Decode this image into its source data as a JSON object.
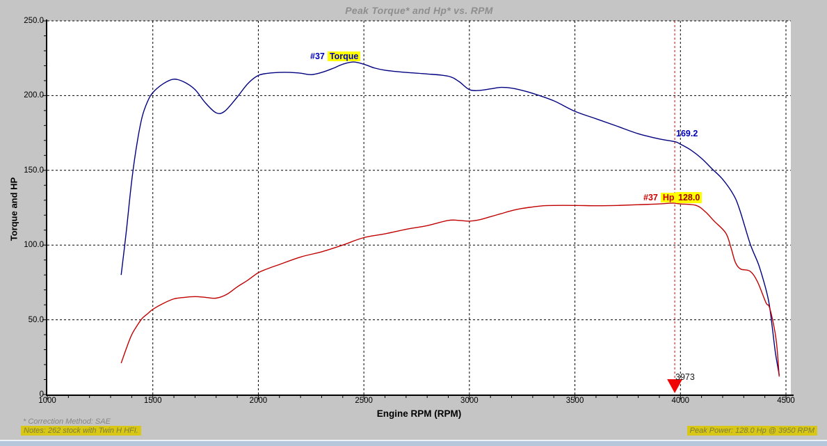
{
  "title": "Peak Torque* and Hp* vs. RPM",
  "axes": {
    "x_label": "Engine RPM (RPM)",
    "y_label": "Torque and HP",
    "x_ticks": [
      "1000",
      "1500",
      "2000",
      "2500",
      "3000",
      "3500",
      "4000",
      "4500"
    ],
    "y_ticks": [
      "0",
      "50.0",
      "100.0",
      "150.0",
      "200.0",
      "250.0"
    ]
  },
  "annotations": {
    "torque_label_prefix": "#37",
    "torque_label_name": "Torque",
    "hp_label_prefix": "#37",
    "hp_label_name": "Hp",
    "torque_value_at_cursor": "169.2",
    "hp_value_at_cursor": "128.0",
    "cursor_rpm": "3973"
  },
  "footer": {
    "correction_method": "* Correction Method: SAE",
    "notes": "Notes: 262 stock with Twin H HFI.",
    "peak_power": "Peak Power: 128.0 Hp @ 3950 RPM"
  },
  "colors": {
    "torque": "#000080",
    "hp": "#c00000",
    "cursor": "#d40000",
    "marker": "#f00505",
    "highlight": "#ffff00",
    "footer_highlight": "#d8c716",
    "title_gray": "#8e8e8e"
  },
  "chart_data": {
    "type": "line",
    "title": "Peak Torque* and Hp* vs. RPM",
    "xlabel": "Engine RPM (RPM)",
    "ylabel": "Torque and HP",
    "xlim": [
      1000,
      4500
    ],
    "ylim": [
      0,
      250
    ],
    "x_major_ticks": [
      1000,
      1500,
      2000,
      2500,
      3000,
      3500,
      4000,
      4500
    ],
    "y_major_ticks": [
      0,
      50,
      100,
      150,
      200,
      250
    ],
    "x_minor_step": 100,
    "y_minor_step": 10,
    "grid": "dashed",
    "legend_position": "inline-labels",
    "series": [
      {
        "id": "torque",
        "name": "#37 Torque",
        "color": "#000080",
        "points": [
          [
            1350,
            80
          ],
          [
            1375,
            110
          ],
          [
            1400,
            143
          ],
          [
            1425,
            168
          ],
          [
            1450,
            186
          ],
          [
            1475,
            196
          ],
          [
            1500,
            202
          ],
          [
            1550,
            208
          ],
          [
            1600,
            211
          ],
          [
            1650,
            209
          ],
          [
            1700,
            204
          ],
          [
            1750,
            195
          ],
          [
            1800,
            188.5
          ],
          [
            1840,
            189.5
          ],
          [
            1900,
            199
          ],
          [
            1950,
            208
          ],
          [
            2000,
            213.5
          ],
          [
            2050,
            215
          ],
          [
            2100,
            215.5
          ],
          [
            2150,
            215.5
          ],
          [
            2200,
            215
          ],
          [
            2250,
            214
          ],
          [
            2300,
            215.5
          ],
          [
            2350,
            218
          ],
          [
            2400,
            221
          ],
          [
            2450,
            222.5
          ],
          [
            2500,
            221
          ],
          [
            2550,
            218.5
          ],
          [
            2600,
            217
          ],
          [
            2700,
            215.5
          ],
          [
            2800,
            214.5
          ],
          [
            2900,
            213
          ],
          [
            2950,
            209.5
          ],
          [
            3000,
            204
          ],
          [
            3050,
            203.5
          ],
          [
            3100,
            204.5
          ],
          [
            3150,
            205.5
          ],
          [
            3200,
            205
          ],
          [
            3250,
            203.5
          ],
          [
            3300,
            201.5
          ],
          [
            3400,
            196.5
          ],
          [
            3500,
            189.5
          ],
          [
            3600,
            184.5
          ],
          [
            3700,
            179.5
          ],
          [
            3800,
            174.5
          ],
          [
            3900,
            171
          ],
          [
            3973,
            169.2
          ],
          [
            4000,
            167.5
          ],
          [
            4050,
            163.5
          ],
          [
            4100,
            158
          ],
          [
            4150,
            151
          ],
          [
            4200,
            144
          ],
          [
            4250,
            134
          ],
          [
            4280,
            124
          ],
          [
            4330,
            101
          ],
          [
            4370,
            87
          ],
          [
            4400,
            73
          ],
          [
            4420,
            61
          ],
          [
            4435,
            45
          ],
          [
            4450,
            28
          ],
          [
            4468,
            13
          ]
        ]
      },
      {
        "id": "hp",
        "name": "#37 Hp",
        "color": "#c00000",
        "points": [
          [
            1350,
            21
          ],
          [
            1375,
            31
          ],
          [
            1400,
            40
          ],
          [
            1425,
            46
          ],
          [
            1450,
            51
          ],
          [
            1475,
            54
          ],
          [
            1500,
            57
          ],
          [
            1550,
            61
          ],
          [
            1600,
            64
          ],
          [
            1650,
            65
          ],
          [
            1700,
            65.5
          ],
          [
            1750,
            65
          ],
          [
            1800,
            64.5
          ],
          [
            1850,
            67
          ],
          [
            1900,
            72
          ],
          [
            1950,
            76.5
          ],
          [
            2000,
            81.5
          ],
          [
            2050,
            84.5
          ],
          [
            2100,
            87
          ],
          [
            2200,
            92
          ],
          [
            2300,
            95.5
          ],
          [
            2400,
            100
          ],
          [
            2500,
            105
          ],
          [
            2600,
            107.5
          ],
          [
            2700,
            110.5
          ],
          [
            2800,
            113
          ],
          [
            2900,
            116.5
          ],
          [
            2950,
            116.5
          ],
          [
            3000,
            116
          ],
          [
            3050,
            117
          ],
          [
            3100,
            119
          ],
          [
            3150,
            121
          ],
          [
            3200,
            123
          ],
          [
            3250,
            124.5
          ],
          [
            3300,
            125.5
          ],
          [
            3350,
            126.3
          ],
          [
            3400,
            126.5
          ],
          [
            3500,
            126.5
          ],
          [
            3600,
            126.3
          ],
          [
            3700,
            126.5
          ],
          [
            3800,
            127
          ],
          [
            3900,
            127.5
          ],
          [
            3950,
            128
          ],
          [
            3973,
            128
          ],
          [
            4000,
            127.5
          ],
          [
            4075,
            126.5
          ],
          [
            4120,
            122
          ],
          [
            4160,
            116
          ],
          [
            4215,
            108
          ],
          [
            4240,
            98
          ],
          [
            4260,
            88.5
          ],
          [
            4285,
            84
          ],
          [
            4330,
            82.5
          ],
          [
            4365,
            75.5
          ],
          [
            4405,
            61.5
          ],
          [
            4420,
            59
          ],
          [
            4438,
            49
          ],
          [
            4455,
            35
          ],
          [
            4468,
            12
          ]
        ]
      }
    ],
    "cursor": {
      "rpm": 3973,
      "torque_at_cursor": 169.2,
      "hp_at_cursor": 128.0
    },
    "peak_power": {
      "hp": 128.0,
      "rpm": 3950
    },
    "correction_method": "SAE",
    "notes": "262 stock with Twin H HFI."
  }
}
